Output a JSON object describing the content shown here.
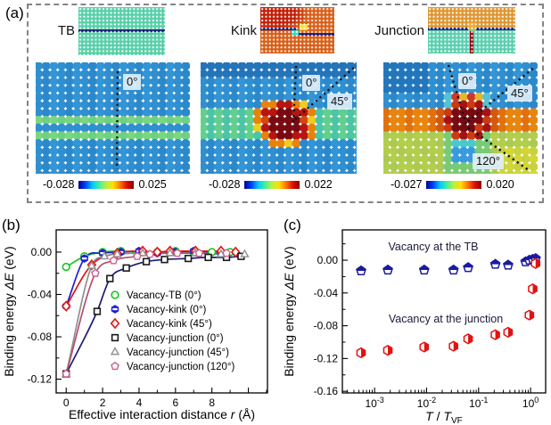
{
  "panel_labels": {
    "a": "(a)",
    "b": "(b)",
    "c": "(c)"
  },
  "panel_a": {
    "structures": [
      {
        "name": "TB",
        "pattern": "tb",
        "angles": [
          "0°"
        ],
        "colorbar": {
          "min": "-0.028",
          "max": "0.025"
        }
      },
      {
        "name": "Kink",
        "pattern": "kink",
        "angles": [
          "0°",
          "45°"
        ],
        "colorbar": {
          "min": "-0.028",
          "max": "0.022"
        }
      },
      {
        "name": "Junction",
        "pattern": "junction",
        "angles": [
          "0°",
          "45°",
          "120°"
        ],
        "colorbar": {
          "min": "-0.027",
          "max": "0.020"
        }
      }
    ],
    "colormap_colors": [
      "#00008f",
      "#0040ff",
      "#00c8ff",
      "#40f0a0",
      "#b8f040",
      "#ffe000",
      "#ff7800",
      "#e01000",
      "#8c0000"
    ]
  },
  "chart_data": [
    {
      "id": "b",
      "type": "line",
      "xlabel_rich": [
        {
          "t": "Effective interaction distance "
        },
        {
          "t": "r",
          "i": true
        },
        {
          "t": " (Å)"
        }
      ],
      "ylabel_rich": [
        {
          "t": "Binding energy "
        },
        {
          "t": "ΔE",
          "i": true
        },
        {
          "t": " (eV)"
        }
      ],
      "xlim": [
        -0.55,
        11.05
      ],
      "ylim": [
        -0.133,
        0.021
      ],
      "xticks": [
        {
          "v": 0,
          "label": "0"
        },
        {
          "v": 2,
          "label": "2"
        },
        {
          "v": 4,
          "label": "4"
        },
        {
          "v": 6,
          "label": "6"
        },
        {
          "v": 8,
          "label": "8"
        },
        {
          "v": 10,
          "label": ""
        }
      ],
      "xminor": [
        1,
        3,
        5,
        7,
        9,
        11
      ],
      "yticks": [
        {
          "v": 0,
          "label": "0.00"
        },
        {
          "v": -0.04,
          "label": "-0.04"
        },
        {
          "v": -0.08,
          "label": "-0.08"
        },
        {
          "v": -0.12,
          "label": "-0.12"
        }
      ],
      "yminor": [
        -0.02,
        -0.06,
        -0.1
      ],
      "grid": false,
      "legend_position": "inside-right",
      "series": [
        {
          "name": "Vacancy-TB (0°)",
          "marker": "circle",
          "color": "#19c51f",
          "x": [
            0,
            1,
            2,
            3,
            4,
            5,
            6,
            7,
            8,
            9
          ],
          "y": [
            -0.014,
            -0.004,
            0.0,
            0.001,
            0.0,
            0.0,
            0.001,
            0.0,
            0.0,
            0.0
          ]
        },
        {
          "name": "Vacancy-kink (0°)",
          "marker": "hexline",
          "color": "#1f1fd6",
          "x": [
            0,
            1,
            2,
            3,
            4,
            5,
            6,
            7,
            8.5
          ],
          "y": [
            -0.051,
            -0.006,
            -0.001,
            0.0,
            0.001,
            -0.001,
            0.0,
            0.001,
            -0.001
          ]
        },
        {
          "name": "Vacancy-kink (45°)",
          "marker": "diamond",
          "color": "#e31212",
          "x": [
            0,
            1.4,
            2.8,
            4.2,
            5.0,
            5.7,
            7.1,
            8.5,
            9.3
          ],
          "y": [
            -0.051,
            -0.012,
            -0.001,
            0.001,
            0.0,
            0.001,
            0.001,
            0.001,
            0.0
          ]
        },
        {
          "name": "Vacancy-junction (0°)",
          "marker": "square",
          "color": "#1a1a1a",
          "line_color": "#1c1c78",
          "x": [
            0,
            1.7,
            2.4,
            3.3,
            4.4,
            5.4,
            6.7,
            7.8,
            8.8,
            9.6
          ],
          "y": [
            -0.115,
            -0.056,
            -0.025,
            -0.015,
            -0.009,
            -0.007,
            -0.006,
            -0.005,
            -0.005,
            -0.004
          ]
        },
        {
          "name": "Vacancy-junction (45°)",
          "marker": "triangle",
          "color": "#8f8f8f",
          "x": [
            0,
            1.4,
            2.1,
            2.8,
            4.2,
            5.7,
            7.1,
            8.5,
            9.8
          ],
          "y": [
            -0.115,
            -0.013,
            -0.004,
            -0.002,
            -0.001,
            -0.001,
            -0.001,
            -0.002,
            -0.002
          ]
        },
        {
          "name": "Vacancy-junction (120°)",
          "marker": "pentagon",
          "color": "#cf5f8a",
          "line_color": "#b25070",
          "x": [
            0,
            1.6,
            2.6,
            3.9,
            4.6,
            6.1,
            7.3,
            8.8
          ],
          "y": [
            -0.115,
            -0.02,
            -0.008,
            -0.004,
            -0.002,
            -0.001,
            -0.001,
            -0.001
          ]
        }
      ]
    },
    {
      "id": "c",
      "type": "scatter",
      "xscale": "log",
      "xlabel_rich": [
        {
          "t": "T",
          "i": true
        },
        {
          "t": " / "
        },
        {
          "t": "T",
          "i": true
        },
        {
          "t": "VF",
          "sub": true
        }
      ],
      "ylabel_rich": [
        {
          "t": "Binding energy "
        },
        {
          "t": "ΔE",
          "i": true
        },
        {
          "t": " (eV)"
        }
      ],
      "xlim": [
        0.00024,
        1.95
      ],
      "ylim": [
        -0.162,
        0.037
      ],
      "xticks": [
        {
          "v": 0.001,
          "exp": "-3"
        },
        {
          "v": 0.01,
          "exp": "-2"
        },
        {
          "v": 0.1,
          "exp": "-1"
        },
        {
          "v": 1,
          "exp": "0"
        }
      ],
      "yticks": [
        {
          "v": 0,
          "label": "0.00"
        },
        {
          "v": -0.04,
          "label": "-0.04"
        },
        {
          "v": -0.08,
          "label": "-0.08"
        },
        {
          "v": -0.12,
          "label": "-0.12"
        },
        {
          "v": -0.16,
          "label": "-0.16"
        }
      ],
      "yminor": [
        0.02,
        -0.02,
        -0.06,
        -0.1,
        -0.14
      ],
      "grid": false,
      "annotations": [
        "Vacancy at the TB",
        "Vacancy at the junction"
      ],
      "series": [
        {
          "name": "Vacancy at the TB",
          "marker": "pentagon-half",
          "color": "#1b1b9e",
          "x": [
            0.00055,
            0.0018,
            0.009,
            0.033,
            0.063,
            0.21,
            0.37,
            0.8,
            0.95,
            1.1,
            1.25
          ],
          "y": [
            -0.013,
            -0.012,
            -0.012,
            -0.012,
            -0.009,
            -0.005,
            -0.006,
            -0.002,
            0.0,
            0.001,
            0.002
          ]
        },
        {
          "name": "Vacancy at the junction",
          "marker": "hexagon-half",
          "color": "#e31212",
          "x": [
            0.00055,
            0.0018,
            0.009,
            0.033,
            0.063,
            0.21,
            0.37,
            0.95,
            1.1,
            1.25
          ],
          "y": [
            -0.113,
            -0.11,
            -0.106,
            -0.105,
            -0.096,
            -0.091,
            -0.088,
            -0.067,
            -0.035,
            -0.004
          ]
        }
      ]
    }
  ]
}
